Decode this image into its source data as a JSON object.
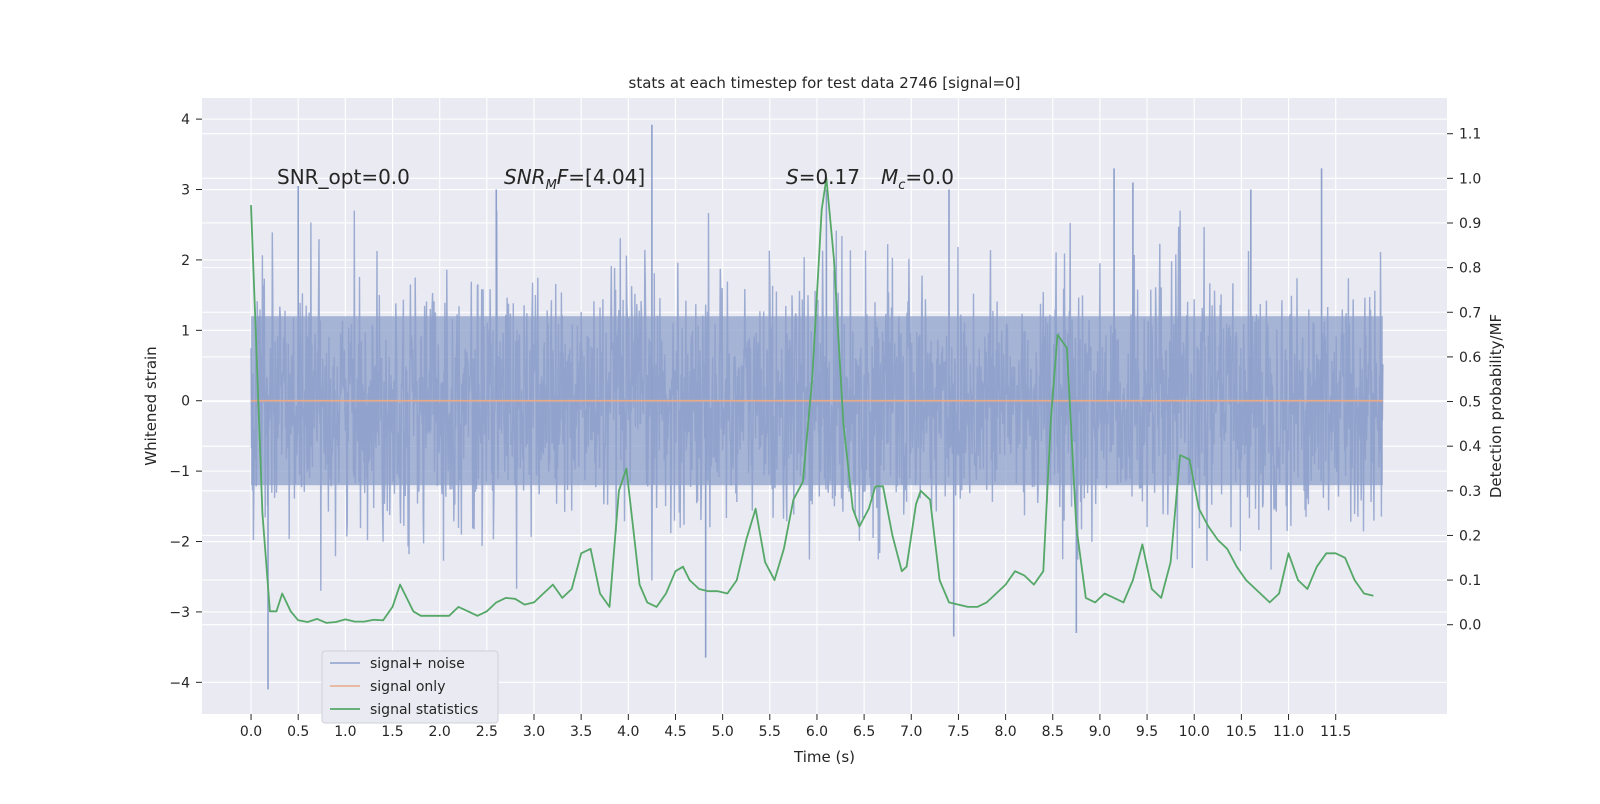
{
  "chart_data": {
    "type": "line",
    "title": "stats at each timestep for test data 2746 [signal=0]",
    "xlabel": "Time (s)",
    "ylabel_left": "Whitened strain",
    "ylabel_right": "Detection probability/MF",
    "xlim": [
      -0.52,
      12.68
    ],
    "ylim_left": [
      -4.45,
      4.3
    ],
    "ylim_right": [
      -0.2,
      1.18
    ],
    "xticks": [
      "0.0",
      "0.5",
      "1.0",
      "1.5",
      "2.0",
      "2.5",
      "3.0",
      "3.5",
      "4.0",
      "4.5",
      "5.0",
      "5.5",
      "6.0",
      "6.5",
      "7.0",
      "7.5",
      "8.0",
      "8.5",
      "9.0",
      "9.5",
      "10.0",
      "10.5",
      "11.0",
      "11.5"
    ],
    "yticks_left": [
      "4",
      "3",
      "2",
      "1",
      "0",
      "−1",
      "−2",
      "−3",
      "−4"
    ],
    "yticks_right": [
      "1.1",
      "1.0",
      "0.9",
      "0.8",
      "0.7",
      "0.6",
      "0.5",
      "0.4",
      "0.3",
      "0.2",
      "0.1",
      "0.0"
    ],
    "grid": true,
    "legend_position": "lower-left",
    "annotations": [
      {
        "name": "snr-opt",
        "text": "SNR_opt=0.0"
      },
      {
        "name": "snr-mf",
        "text": "SNR",
        "sub": "M",
        "tail": "F=[4.04]"
      },
      {
        "name": "s-stat",
        "text": "S",
        "tail": "=0.17"
      },
      {
        "name": "mc-stat",
        "text": "M",
        "sub": "c",
        "tail": "=0.0"
      }
    ],
    "series": [
      {
        "name": "signal+ noise",
        "color": "#8da0cb",
        "axis": "left",
        "kind": "noise",
        "x_range": [
          0.0,
          12.0
        ],
        "core_band": [
          -1.2,
          1.2
        ],
        "typical_extent": [
          -2.2,
          2.2
        ],
        "spikes": [
          {
            "x": 0.18,
            "y": -4.1
          },
          {
            "x": 0.5,
            "y": 3.05
          },
          {
            "x": 2.6,
            "y": 3.0
          },
          {
            "x": 4.25,
            "y": 3.92
          },
          {
            "x": 4.82,
            "y": -3.65
          },
          {
            "x": 6.1,
            "y": 3.0
          },
          {
            "x": 7.4,
            "y": 3.0
          },
          {
            "x": 7.45,
            "y": -3.35
          },
          {
            "x": 8.75,
            "y": -3.3
          },
          {
            "x": 9.15,
            "y": 3.3
          },
          {
            "x": 9.35,
            "y": 3.1
          },
          {
            "x": 10.6,
            "y": 3.0
          },
          {
            "x": 11.35,
            "y": 3.3
          }
        ]
      },
      {
        "name": "signal only",
        "color": "#e8a98a",
        "axis": "left",
        "x": [
          0.0,
          12.0
        ],
        "y": [
          0.0,
          0.0
        ]
      },
      {
        "name": "signal statistics",
        "color": "#55a868",
        "axis": "right",
        "points": [
          [
            0.0,
            0.94
          ],
          [
            0.06,
            0.6
          ],
          [
            0.12,
            0.25
          ],
          [
            0.2,
            0.03
          ],
          [
            0.27,
            0.03
          ],
          [
            0.33,
            0.07
          ],
          [
            0.42,
            0.03
          ],
          [
            0.5,
            0.01
          ],
          [
            0.6,
            0.006
          ],
          [
            0.7,
            0.013
          ],
          [
            0.8,
            0.004
          ],
          [
            0.9,
            0.006
          ],
          [
            1.0,
            0.012
          ],
          [
            1.1,
            0.007
          ],
          [
            1.2,
            0.007
          ],
          [
            1.3,
            0.011
          ],
          [
            1.4,
            0.01
          ],
          [
            1.5,
            0.04
          ],
          [
            1.58,
            0.09
          ],
          [
            1.65,
            0.06
          ],
          [
            1.72,
            0.03
          ],
          [
            1.8,
            0.02
          ],
          [
            1.9,
            0.02
          ],
          [
            2.0,
            0.02
          ],
          [
            2.1,
            0.02
          ],
          [
            2.2,
            0.04
          ],
          [
            2.3,
            0.03
          ],
          [
            2.4,
            0.02
          ],
          [
            2.5,
            0.03
          ],
          [
            2.6,
            0.05
          ],
          [
            2.7,
            0.06
          ],
          [
            2.8,
            0.058
          ],
          [
            2.9,
            0.045
          ],
          [
            3.0,
            0.05
          ],
          [
            3.1,
            0.07
          ],
          [
            3.2,
            0.09
          ],
          [
            3.3,
            0.06
          ],
          [
            3.4,
            0.08
          ],
          [
            3.5,
            0.16
          ],
          [
            3.6,
            0.17
          ],
          [
            3.7,
            0.07
          ],
          [
            3.8,
            0.04
          ],
          [
            3.9,
            0.3
          ],
          [
            3.98,
            0.35
          ],
          [
            4.05,
            0.22
          ],
          [
            4.12,
            0.09
          ],
          [
            4.2,
            0.05
          ],
          [
            4.3,
            0.04
          ],
          [
            4.4,
            0.07
          ],
          [
            4.5,
            0.12
          ],
          [
            4.58,
            0.13
          ],
          [
            4.65,
            0.1
          ],
          [
            4.75,
            0.08
          ],
          [
            4.85,
            0.075
          ],
          [
            4.95,
            0.075
          ],
          [
            5.05,
            0.07
          ],
          [
            5.15,
            0.1
          ],
          [
            5.25,
            0.19
          ],
          [
            5.35,
            0.26
          ],
          [
            5.45,
            0.14
          ],
          [
            5.55,
            0.1
          ],
          [
            5.65,
            0.17
          ],
          [
            5.75,
            0.28
          ],
          [
            5.85,
            0.32
          ],
          [
            5.95,
            0.55
          ],
          [
            6.05,
            0.93
          ],
          [
            6.1,
            1.0
          ],
          [
            6.18,
            0.82
          ],
          [
            6.28,
            0.45
          ],
          [
            6.38,
            0.26
          ],
          [
            6.45,
            0.22
          ],
          [
            6.55,
            0.26
          ],
          [
            6.62,
            0.31
          ],
          [
            6.7,
            0.31
          ],
          [
            6.8,
            0.2
          ],
          [
            6.9,
            0.12
          ],
          [
            6.95,
            0.13
          ],
          [
            7.05,
            0.27
          ],
          [
            7.1,
            0.3
          ],
          [
            7.2,
            0.28
          ],
          [
            7.3,
            0.1
          ],
          [
            7.4,
            0.05
          ],
          [
            7.5,
            0.045
          ],
          [
            7.6,
            0.04
          ],
          [
            7.7,
            0.04
          ],
          [
            7.8,
            0.05
          ],
          [
            7.9,
            0.07
          ],
          [
            8.0,
            0.09
          ],
          [
            8.1,
            0.12
          ],
          [
            8.2,
            0.11
          ],
          [
            8.3,
            0.09
          ],
          [
            8.4,
            0.12
          ],
          [
            8.48,
            0.46
          ],
          [
            8.55,
            0.65
          ],
          [
            8.65,
            0.62
          ],
          [
            8.75,
            0.22
          ],
          [
            8.85,
            0.06
          ],
          [
            8.95,
            0.05
          ],
          [
            9.05,
            0.07
          ],
          [
            9.15,
            0.06
          ],
          [
            9.25,
            0.05
          ],
          [
            9.35,
            0.1
          ],
          [
            9.45,
            0.18
          ],
          [
            9.55,
            0.08
          ],
          [
            9.65,
            0.06
          ],
          [
            9.75,
            0.14
          ],
          [
            9.85,
            0.38
          ],
          [
            9.95,
            0.37
          ],
          [
            10.05,
            0.26
          ],
          [
            10.15,
            0.22
          ],
          [
            10.25,
            0.19
          ],
          [
            10.35,
            0.17
          ],
          [
            10.45,
            0.13
          ],
          [
            10.55,
            0.1
          ],
          [
            10.7,
            0.07
          ],
          [
            10.8,
            0.05
          ],
          [
            10.9,
            0.07
          ],
          [
            11.0,
            0.16
          ],
          [
            11.1,
            0.1
          ],
          [
            11.2,
            0.08
          ],
          [
            11.3,
            0.13
          ],
          [
            11.4,
            0.16
          ],
          [
            11.5,
            0.16
          ],
          [
            11.6,
            0.15
          ],
          [
            11.7,
            0.1
          ],
          [
            11.8,
            0.07
          ],
          [
            11.9,
            0.065
          ]
        ]
      }
    ]
  }
}
